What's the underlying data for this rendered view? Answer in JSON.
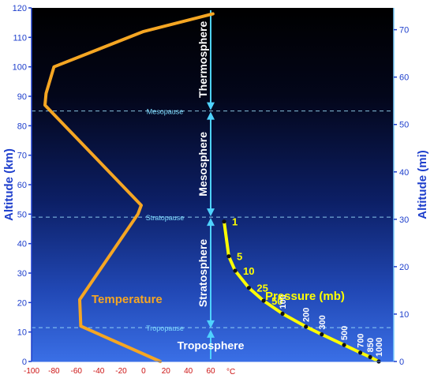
{
  "chart_data": {
    "type": "line",
    "left_axis": {
      "label": "Altitude (km)",
      "range": [
        0,
        120
      ],
      "ticks": [
        0,
        10,
        20,
        30,
        40,
        50,
        60,
        70,
        80,
        90,
        100,
        110,
        120
      ]
    },
    "right_axis": {
      "label": "Altitude (mi)",
      "range": [
        0,
        74.6
      ],
      "ticks": [
        0,
        10,
        20,
        30,
        40,
        50,
        60,
        70
      ]
    },
    "x_axis": {
      "range": [
        -100,
        60
      ],
      "ticks": [
        -100,
        -80,
        -60,
        -40,
        -20,
        0,
        20,
        40,
        60
      ],
      "tick_labels": [
        "-100",
        "-80",
        "-60",
        "-40",
        "-20",
        "0",
        "20",
        "40",
        "60"
      ],
      "unit": "°C",
      "grid": false
    },
    "layers": [
      {
        "name": "Thermosphere",
        "from_km": 85,
        "to_km": 120
      },
      {
        "name": "Mesosphere",
        "from_km": 49,
        "to_km": 85
      },
      {
        "name": "Stratosphere",
        "from_km": 11,
        "to_km": 49
      },
      {
        "name": "Troposphere",
        "from_km": 0,
        "to_km": 11
      }
    ],
    "boundaries": [
      {
        "name": "Mesopause",
        "altitude_km": 85
      },
      {
        "name": "Stratopause",
        "altitude_km": 49
      },
      {
        "name": "Tropopause",
        "altitude_km": 11.5
      }
    ],
    "series": [
      {
        "name": "Temperature",
        "color": "#f5a623",
        "points": [
          {
            "temp_c": 15,
            "alt_km": 0
          },
          {
            "temp_c": -56,
            "alt_km": 12
          },
          {
            "temp_c": -57,
            "alt_km": 21
          },
          {
            "temp_c": -5,
            "alt_km": 50
          },
          {
            "temp_c": -2,
            "alt_km": 53
          },
          {
            "temp_c": -88,
            "alt_km": 87
          },
          {
            "temp_c": -87,
            "alt_km": 91
          },
          {
            "temp_c": -80,
            "alt_km": 100
          },
          {
            "temp_c": 0,
            "alt_km": 112
          },
          {
            "temp_c": 62,
            "alt_km": 118
          }
        ]
      },
      {
        "name": "Pressure (mb)",
        "color": "#ffff00",
        "points": [
          {
            "pressure_mb": 1000,
            "alt_km": 0
          },
          {
            "pressure_mb": 850,
            "alt_km": 1.5
          },
          {
            "pressure_mb": 700,
            "alt_km": 3
          },
          {
            "pressure_mb": 500,
            "alt_km": 5.6
          },
          {
            "pressure_mb": 300,
            "alt_km": 9.2
          },
          {
            "pressure_mb": 200,
            "alt_km": 11.8
          },
          {
            "pressure_mb": 100,
            "alt_km": 16.2
          },
          {
            "pressure_mb": 50,
            "alt_km": 20.6
          },
          {
            "pressure_mb": 25,
            "alt_km": 25
          },
          {
            "pressure_mb": 10,
            "alt_km": 30.8
          },
          {
            "pressure_mb": 5,
            "alt_km": 35.7
          },
          {
            "pressure_mb": 1,
            "alt_km": 47.5
          }
        ],
        "point_labels_upper": [
          "1",
          "5",
          "10",
          "25",
          "50"
        ],
        "point_labels_lower": [
          "100",
          "200",
          "300",
          "500",
          "700",
          "850",
          "1000"
        ]
      }
    ]
  }
}
